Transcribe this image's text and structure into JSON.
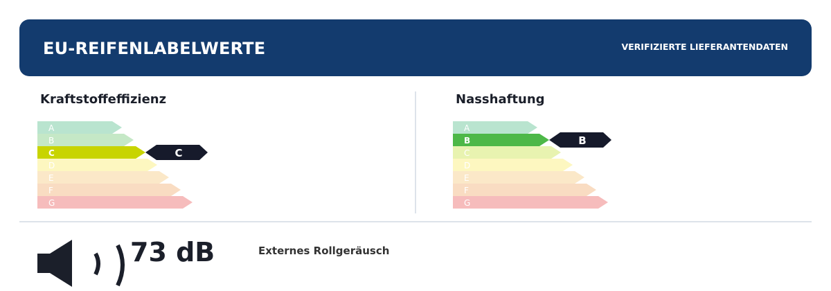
{
  "header": {
    "title": "EU-REIFENLABELWERTE",
    "badge": "VERIFIZIERTE LIEFERANTENDATEN"
  },
  "fuel": {
    "label": "Kraftstoffeffizienz",
    "classes": [
      "A",
      "B",
      "C",
      "D",
      "E",
      "F",
      "G"
    ],
    "rating": "C"
  },
  "wet": {
    "label": "Nasshaftung",
    "classes": [
      "A",
      "B",
      "C",
      "D",
      "E",
      "F",
      "G"
    ],
    "rating": "B"
  },
  "noise": {
    "value": "73 dB",
    "caption": "Externes Rollgeräusch"
  }
}
